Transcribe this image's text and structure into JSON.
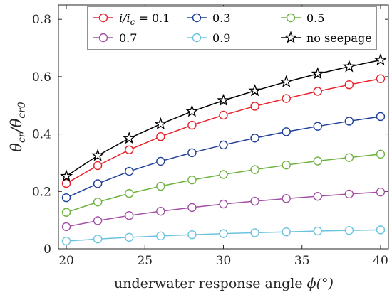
{
  "chart_data": {
    "type": "line",
    "xlabel": "underwater response angle",
    "xlabel_symbol": "ϕ(°)",
    "ylabel": "θcr/θcr0",
    "xlim": [
      19.5,
      40.5
    ],
    "ylim": [
      0,
      0.85
    ],
    "xticks": [
      20,
      25,
      30,
      35,
      40
    ],
    "yticks": [
      0,
      0.2,
      0.4,
      0.6,
      0.8
    ],
    "grid": false,
    "legend_position": "top",
    "x": [
      20,
      22,
      24,
      26,
      28,
      30,
      32,
      34,
      36,
      38,
      40
    ],
    "series": [
      {
        "name": "i/ic = 0.1",
        "color": "#e8212b",
        "marker": "circle",
        "values": [
          0.228,
          0.29,
          0.345,
          0.391,
          0.431,
          0.466,
          0.497,
          0.524,
          0.549,
          0.572,
          0.593
        ]
      },
      {
        "name": "0.3",
        "color": "#1f3f99",
        "marker": "circle",
        "values": [
          0.178,
          0.227,
          0.27,
          0.305,
          0.335,
          0.362,
          0.386,
          0.408,
          0.427,
          0.445,
          0.461
        ]
      },
      {
        "name": "0.5",
        "color": "#6db33f",
        "marker": "circle",
        "values": [
          0.127,
          0.163,
          0.193,
          0.218,
          0.24,
          0.259,
          0.276,
          0.292,
          0.306,
          0.318,
          0.33
        ]
      },
      {
        "name": "0.7",
        "color": "#a24ea3",
        "marker": "circle",
        "values": [
          0.077,
          0.098,
          0.116,
          0.131,
          0.144,
          0.156,
          0.166,
          0.175,
          0.183,
          0.191,
          0.198
        ]
      },
      {
        "name": "0.9",
        "color": "#6cc3e0",
        "marker": "circle",
        "values": [
          0.027,
          0.034,
          0.04,
          0.045,
          0.049,
          0.053,
          0.056,
          0.059,
          0.062,
          0.064,
          0.066
        ]
      },
      {
        "name": "no seepage",
        "color": "#000000",
        "marker": "star",
        "values": [
          0.253,
          0.325,
          0.385,
          0.435,
          0.479,
          0.517,
          0.551,
          0.582,
          0.61,
          0.635,
          0.658
        ]
      }
    ]
  }
}
